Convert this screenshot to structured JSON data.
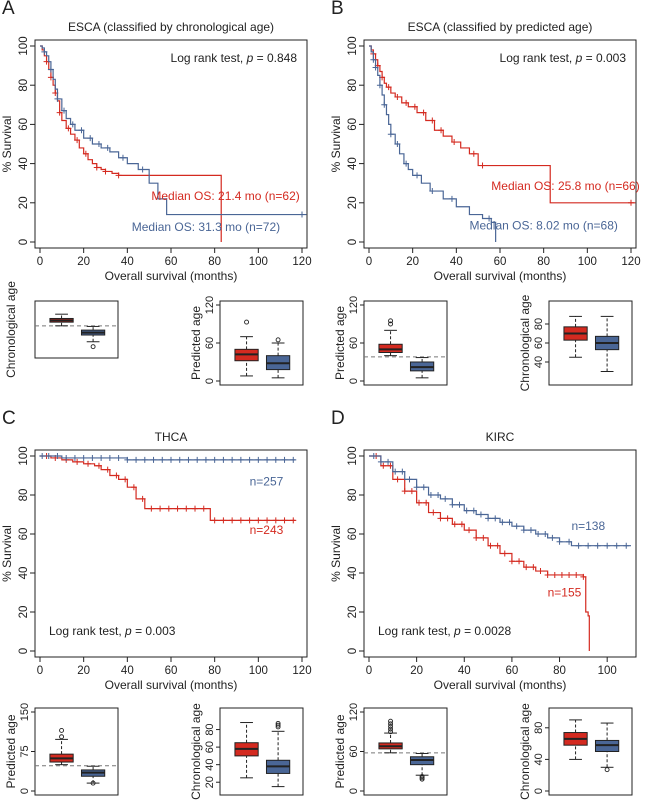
{
  "colors": {
    "red": "#d42a20",
    "blue": "#4a6696",
    "axis": "#222222",
    "dash": "#777777"
  },
  "chart_data": [
    {
      "id": "A",
      "type": "line",
      "panel_label": "A",
      "title": "ESCA (classified by chronological age)",
      "xlabel": "Overall survival (months)",
      "ylabel": "% Survival",
      "xlim": [
        0,
        120
      ],
      "ylim": [
        0,
        100
      ],
      "xticks": [
        0,
        20,
        40,
        60,
        80,
        100,
        120
      ],
      "yticks": [
        0,
        20,
        40,
        60,
        80,
        100
      ],
      "test_text": "Log rank test, p = 0.848",
      "test_prefix": "Log rank test, ",
      "test_p": "p",
      "test_value": " = 0.848",
      "test_pos": "top-right",
      "series": [
        {
          "name": "Median OS: 21.4 mo (n=62)",
          "color": "red",
          "x": [
            0,
            1,
            2,
            3,
            4,
            5,
            6,
            7,
            8,
            9,
            10,
            12,
            14,
            16,
            18,
            20,
            22,
            24,
            26,
            28,
            30,
            33,
            36,
            40,
            83,
            83
          ],
          "y": [
            100,
            98,
            95,
            92,
            88,
            84,
            80,
            76,
            72,
            66,
            62,
            58,
            55,
            52,
            48,
            45,
            42,
            40,
            38,
            37,
            36,
            35,
            34,
            34,
            34,
            0
          ],
          "censor_x": [
            3,
            5,
            7,
            9,
            13,
            17,
            21,
            26,
            30,
            36
          ]
        },
        {
          "name": "Median OS: 31.3 mo (n=72)",
          "color": "blue",
          "x": [
            0,
            1,
            2,
            3,
            4,
            5,
            6,
            7,
            8,
            10,
            12,
            14,
            16,
            20,
            24,
            28,
            32,
            36,
            40,
            45,
            50,
            54,
            58,
            122
          ],
          "y": [
            100,
            99,
            97,
            95,
            92,
            88,
            83,
            78,
            73,
            67,
            63,
            60,
            57,
            53,
            50,
            48,
            46,
            43,
            40,
            37,
            30,
            22,
            14,
            14
          ],
          "censor_x": [
            2,
            5,
            8,
            11,
            15,
            19,
            23,
            27,
            31,
            38,
            47,
            120
          ]
        }
      ],
      "label_red": "Median OS: 21.4 mo (n=62)",
      "label_blue": "Median OS: 31.3 mo (n=72)"
    },
    {
      "id": "B",
      "type": "line",
      "panel_label": "B",
      "title": "ESCA (classified by predicted age)",
      "xlabel": "Overall survival (months)",
      "ylabel": "% Survival",
      "xlim": [
        0,
        120
      ],
      "ylim": [
        0,
        100
      ],
      "xticks": [
        0,
        20,
        40,
        60,
        80,
        100,
        120
      ],
      "yticks": [
        0,
        20,
        40,
        60,
        80,
        100
      ],
      "test_text": "Log rank test, p = 0.003",
      "test_prefix": "Log rank test, ",
      "test_p": "p",
      "test_value": " = 0.003",
      "test_pos": "top-right",
      "series": [
        {
          "name": "Median OS: 25.8 mo (n=66)",
          "color": "red",
          "x": [
            0,
            1,
            2,
            3,
            4,
            5,
            6,
            7,
            8,
            10,
            12,
            15,
            18,
            22,
            26,
            30,
            34,
            38,
            42,
            46,
            50,
            83,
            122
          ],
          "y": [
            100,
            98,
            96,
            93,
            90,
            87,
            84,
            81,
            79,
            76,
            74,
            71,
            69,
            66,
            62,
            57,
            54,
            51,
            48,
            45,
            39,
            20,
            20
          ],
          "censor_x": [
            2,
            4,
            6,
            9,
            13,
            17,
            21,
            25,
            29,
            33,
            39,
            48,
            52,
            120
          ]
        },
        {
          "name": "Median OS: 8.02 mo (n=68)",
          "color": "blue",
          "x": [
            0,
            1,
            2,
            3,
            4,
            5,
            6,
            7,
            8,
            9,
            10,
            12,
            14,
            16,
            18,
            20,
            24,
            28,
            34,
            40,
            46,
            52,
            56,
            58
          ],
          "y": [
            100,
            97,
            93,
            89,
            85,
            80,
            75,
            70,
            65,
            60,
            55,
            50,
            45,
            40,
            37,
            34,
            30,
            26,
            22,
            18,
            14,
            12,
            10,
            0
          ],
          "censor_x": [
            2,
            3,
            5,
            7,
            10,
            13,
            17,
            22,
            29,
            38,
            55
          ]
        }
      ],
      "label_red": "Median OS: 25.8 mo (n=66)",
      "label_blue": "Median OS: 8.02 mo (n=68)"
    },
    {
      "id": "C",
      "type": "line",
      "panel_label": "C",
      "title": "THCA",
      "xlabel": "Overall survival (months)",
      "ylabel": "% Survival",
      "xlim": [
        0,
        120
      ],
      "ylim": [
        0,
        100
      ],
      "xticks": [
        0,
        20,
        40,
        60,
        80,
        100,
        120
      ],
      "yticks": [
        0,
        20,
        40,
        60,
        80,
        100
      ],
      "test_text": "Log rank test, p = 0.003",
      "test_prefix": "Log rank test, ",
      "test_p": "p",
      "test_value": " = 0.003",
      "test_pos": "bottom-left",
      "series": [
        {
          "name": "n=243",
          "color": "red",
          "x": [
            0,
            5,
            10,
            15,
            20,
            25,
            28,
            32,
            36,
            40,
            44,
            48,
            55,
            62,
            70,
            78,
            117
          ],
          "y": [
            100,
            99,
            98,
            97,
            96,
            95,
            93,
            90,
            88,
            84,
            78,
            73,
            73,
            73,
            73,
            67,
            67
          ],
          "censor_x": [
            3,
            7,
            12,
            17,
            22,
            27,
            31,
            35,
            39,
            43,
            47,
            51,
            55,
            59,
            63,
            67,
            71,
            75,
            80,
            84,
            88,
            92,
            96,
            100,
            104,
            108,
            112,
            116
          ]
        },
        {
          "name": "n=257",
          "color": "blue",
          "x": [
            0,
            10,
            20,
            40,
            60,
            117
          ],
          "y": [
            100,
            99,
            99,
            98,
            98,
            98
          ],
          "censor_x": [
            1,
            4,
            8,
            12,
            16,
            20,
            24,
            28,
            32,
            36,
            40,
            44,
            48,
            52,
            56,
            60,
            64,
            68,
            72,
            76,
            80,
            84,
            88,
            92,
            96,
            100,
            104,
            108,
            112,
            116
          ]
        }
      ],
      "label_red": "n=243",
      "label_blue": "n=257"
    },
    {
      "id": "D",
      "type": "line",
      "panel_label": "D",
      "title": "KIRC",
      "xlabel": "Overall survival (months)",
      "ylabel": "% Survival",
      "xlim": [
        0,
        110
      ],
      "ylim": [
        0,
        100
      ],
      "xticks": [
        0,
        20,
        40,
        60,
        80,
        100
      ],
      "yticks": [
        0,
        20,
        40,
        60,
        80,
        100
      ],
      "test_text": "Log rank test, p = 0.0028",
      "test_prefix": "Log rank test, ",
      "test_p": "p",
      "test_value": " = 0.0028",
      "test_pos": "bottom-left",
      "series": [
        {
          "name": "n=155",
          "color": "red",
          "x": [
            0,
            5,
            10,
            15,
            20,
            25,
            30,
            35,
            40,
            45,
            50,
            55,
            60,
            65,
            70,
            75,
            80,
            85,
            90,
            91,
            92,
            92.5
          ],
          "y": [
            100,
            95,
            88,
            82,
            76,
            71,
            68,
            65,
            62,
            58,
            54,
            50,
            46,
            43,
            41,
            39,
            39,
            39,
            38,
            20,
            18,
            0
          ],
          "censor_x": [
            3,
            6,
            9,
            12,
            15,
            18,
            21,
            24,
            27,
            30,
            33,
            36,
            39,
            42,
            45,
            48,
            51,
            54,
            57,
            60,
            63,
            66,
            69,
            72,
            75,
            78,
            81,
            84,
            87,
            90
          ]
        },
        {
          "name": "n=138",
          "color": "blue",
          "x": [
            0,
            5,
            10,
            15,
            20,
            25,
            30,
            35,
            40,
            45,
            50,
            55,
            60,
            65,
            70,
            75,
            80,
            85,
            90,
            110
          ],
          "y": [
            100,
            97,
            92,
            88,
            84,
            80,
            78,
            75,
            72,
            70,
            68,
            66,
            64,
            62,
            60,
            58,
            56,
            54,
            54,
            54
          ],
          "censor_x": [
            2,
            5,
            8,
            11,
            14,
            17,
            20,
            23,
            26,
            29,
            32,
            35,
            38,
            41,
            44,
            47,
            50,
            53,
            56,
            59,
            62,
            65,
            68,
            71,
            74,
            77,
            80,
            84,
            88,
            92,
            96,
            100,
            104,
            108
          ]
        }
      ],
      "label_red": "n=155",
      "label_blue": "n=138"
    }
  ],
  "box_data": [
    {
      "id": "A1",
      "ylabel": "Chronological age",
      "yticks": [],
      "ylim": [
        20,
        100
      ],
      "cutoff": 66,
      "boxes": [
        {
          "group": "red",
          "min": 66,
          "q1": 72,
          "median": 75,
          "q3": 78,
          "max": 85,
          "outliers": []
        },
        {
          "group": "blue",
          "min": 40,
          "q1": 51,
          "median": 55,
          "q3": 59,
          "max": 65,
          "outliers": [
            32
          ]
        }
      ]
    },
    {
      "id": "A2",
      "ylabel": "Predicted age",
      "yticks": [
        0,
        60,
        120
      ],
      "ylim": [
        0,
        120
      ],
      "cutoff": null,
      "boxes": [
        {
          "group": "red",
          "min": 8,
          "q1": 32,
          "median": 42,
          "q3": 50,
          "max": 70,
          "outliers": [
            93
          ]
        },
        {
          "group": "blue",
          "min": 5,
          "q1": 18,
          "median": 28,
          "q3": 40,
          "max": 60,
          "outliers": [
            65
          ]
        }
      ]
    },
    {
      "id": "B1",
      "ylabel": "Predicted age",
      "yticks": [
        0,
        60,
        120
      ],
      "ylim": [
        0,
        120
      ],
      "cutoff": 38,
      "boxes": [
        {
          "group": "red",
          "min": 40,
          "q1": 45,
          "median": 50,
          "q3": 58,
          "max": 80,
          "outliers": [
            90,
            95
          ]
        },
        {
          "group": "blue",
          "min": 5,
          "q1": 16,
          "median": 22,
          "q3": 30,
          "max": 37,
          "outliers": []
        }
      ]
    },
    {
      "id": "B2",
      "ylabel": "Chronological age",
      "yticks": [
        40,
        60,
        80
      ],
      "ylim": [
        20,
        100
      ],
      "cutoff": null,
      "boxes": [
        {
          "group": "red",
          "min": 45,
          "q1": 63,
          "median": 70,
          "q3": 77,
          "max": 88,
          "outliers": []
        },
        {
          "group": "blue",
          "min": 30,
          "q1": 53,
          "median": 60,
          "q3": 67,
          "max": 88,
          "outliers": []
        }
      ]
    },
    {
      "id": "C1",
      "ylabel": "Predicted age",
      "yticks": [
        0,
        75,
        150
      ],
      "ylim": [
        0,
        150
      ],
      "cutoff": 48,
      "boxes": [
        {
          "group": "red",
          "min": 50,
          "q1": 55,
          "median": 62,
          "q3": 70,
          "max": 98,
          "outliers": [
            103,
            115
          ]
        },
        {
          "group": "blue",
          "min": 15,
          "q1": 28,
          "median": 35,
          "q3": 40,
          "max": 47,
          "outliers": [
            15
          ]
        }
      ]
    },
    {
      "id": "C2",
      "ylabel": "Chronological age",
      "yticks": [
        20,
        40,
        60,
        80
      ],
      "ylim": [
        10,
        100
      ],
      "cutoff": null,
      "boxes": [
        {
          "group": "red",
          "min": 25,
          "q1": 50,
          "median": 58,
          "q3": 65,
          "max": 88,
          "outliers": []
        },
        {
          "group": "blue",
          "min": 15,
          "q1": 30,
          "median": 38,
          "q3": 45,
          "max": 78,
          "outliers": [
            83,
            85,
            87
          ]
        }
      ]
    },
    {
      "id": "D1",
      "ylabel": "Predicted age",
      "yticks": [
        0,
        60,
        120
      ],
      "ylim": [
        0,
        120
      ],
      "cutoff": 58,
      "boxes": [
        {
          "group": "red",
          "min": 58,
          "q1": 64,
          "median": 68,
          "q3": 73,
          "max": 88,
          "outliers": [
            90,
            94,
            98,
            102,
            106
          ]
        },
        {
          "group": "blue",
          "min": 24,
          "q1": 40,
          "median": 47,
          "q3": 52,
          "max": 57,
          "outliers": [
            22,
            20,
            18
          ]
        }
      ]
    },
    {
      "id": "D2",
      "ylabel": "Chronological age",
      "yticks": [
        0,
        40,
        80
      ],
      "ylim": [
        0,
        100
      ],
      "cutoff": null,
      "boxes": [
        {
          "group": "red",
          "min": 40,
          "q1": 58,
          "median": 66,
          "q3": 74,
          "max": 90,
          "outliers": []
        },
        {
          "group": "blue",
          "min": 30,
          "q1": 50,
          "median": 58,
          "q3": 64,
          "max": 86,
          "outliers": [
            27
          ]
        }
      ]
    }
  ]
}
